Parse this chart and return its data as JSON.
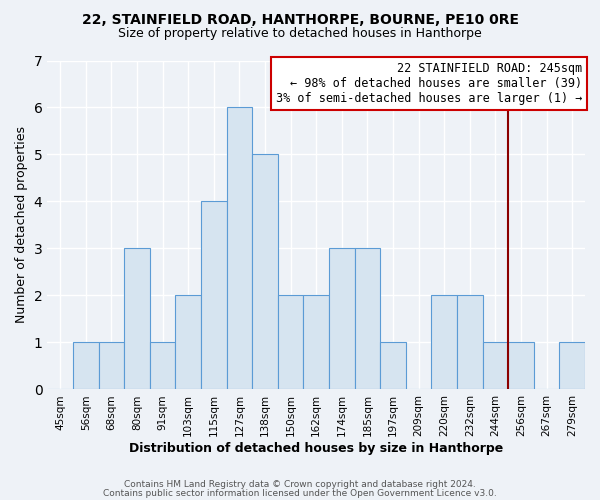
{
  "title": "22, STAINFIELD ROAD, HANTHORPE, BOURNE, PE10 0RE",
  "subtitle": "Size of property relative to detached houses in Hanthorpe",
  "xlabel": "Distribution of detached houses by size in Hanthorpe",
  "ylabel": "Number of detached properties",
  "categories": [
    "45sqm",
    "56sqm",
    "68sqm",
    "80sqm",
    "91sqm",
    "103sqm",
    "115sqm",
    "127sqm",
    "138sqm",
    "150sqm",
    "162sqm",
    "174sqm",
    "185sqm",
    "197sqm",
    "209sqm",
    "220sqm",
    "232sqm",
    "244sqm",
    "256sqm",
    "267sqm",
    "279sqm"
  ],
  "values": [
    0,
    1,
    1,
    3,
    1,
    2,
    4,
    6,
    5,
    2,
    2,
    3,
    3,
    1,
    0,
    2,
    2,
    1,
    1,
    0,
    1
  ],
  "bar_facecolor": "#d6e4f0",
  "bar_edgecolor": "#5b9bd5",
  "bar_linewidth": 0.8,
  "ylim": [
    0,
    7
  ],
  "yticks": [
    0,
    1,
    2,
    3,
    4,
    5,
    6,
    7
  ],
  "vline_index": 17,
  "vline_color": "#8b0000",
  "vline_linewidth": 1.5,
  "annotation_title": "22 STAINFIELD ROAD: 245sqm",
  "annotation_line1": "← 98% of detached houses are smaller (39)",
  "annotation_line2": "3% of semi-detached houses are larger (1) →",
  "annotation_box_color": "#cc0000",
  "annotation_fontsize": 8.5,
  "footer_line1": "Contains HM Land Registry data © Crown copyright and database right 2024.",
  "footer_line2": "Contains public sector information licensed under the Open Government Licence v3.0.",
  "background_color": "#eef2f7",
  "plot_bg_color": "#eef2f7",
  "grid_color": "#ffffff",
  "title_fontsize": 10,
  "subtitle_fontsize": 9,
  "ylabel_fontsize": 9,
  "xlabel_fontsize": 9,
  "tick_fontsize": 7.5,
  "footer_fontsize": 6.5,
  "footer_color": "#555555"
}
